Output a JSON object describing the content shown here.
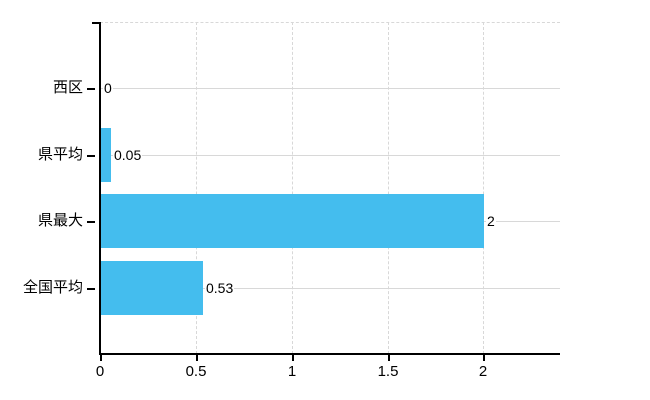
{
  "chart_data": {
    "type": "bar",
    "orientation": "horizontal",
    "title": "",
    "xlabel": "",
    "ylabel": "",
    "categories": [
      "西区",
      "県平均",
      "県最大",
      "全国平均"
    ],
    "values": [
      0,
      0.05,
      2,
      0.53
    ],
    "value_labels": [
      "0",
      "0.05",
      "2",
      "0.53"
    ],
    "x_ticks": [
      0,
      0.5,
      1,
      1.5,
      2
    ],
    "x_tick_labels": [
      "0",
      "0.5",
      "1",
      "1.5",
      "2"
    ],
    "xlim": [
      0,
      2.4
    ],
    "grid": "on",
    "grid_style": {
      "vertical": "dashed",
      "horizontal": "solid",
      "top_border": "dashed"
    },
    "legend_position": "none",
    "colors": {
      "bar": "#44bdee",
      "grid": "#d8d8d8",
      "axis": "#000000",
      "text": "#000000",
      "background": "#ffffff"
    }
  }
}
